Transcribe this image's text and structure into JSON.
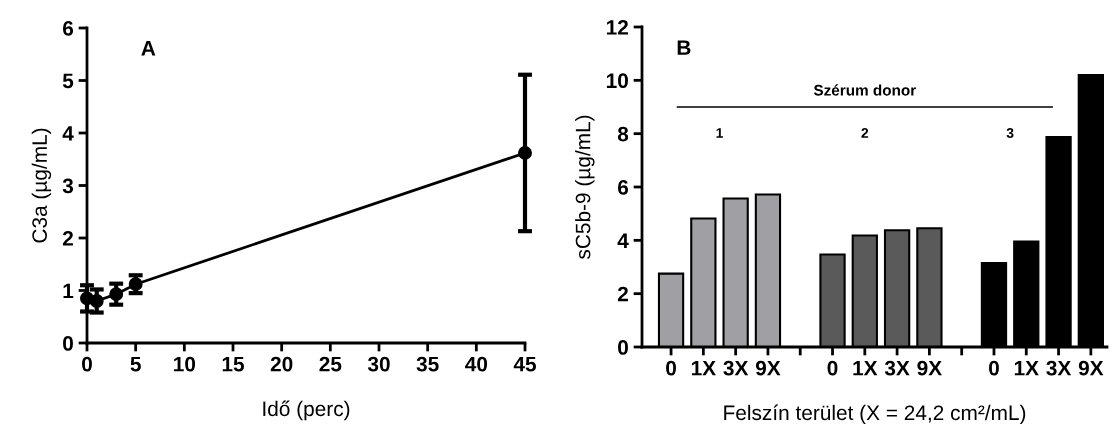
{
  "chart_data": [
    {
      "type": "line",
      "xlabel": "Idő (perc)",
      "ylabel": "C3a (µg/mL)",
      "annotations": [
        "A"
      ],
      "x": [
        0,
        1,
        3,
        5,
        45
      ],
      "series": [
        {
          "color": "#000000",
          "values": [
            0.85,
            0.8,
            0.93,
            1.12,
            3.62
          ],
          "errors": [
            0.25,
            0.22,
            0.2,
            0.17,
            1.49
          ]
        }
      ],
      "xlim": [
        0,
        45
      ],
      "xticks": [
        0,
        5,
        10,
        15,
        20,
        25,
        30,
        35,
        40,
        45
      ],
      "ylim": [
        0,
        6
      ],
      "yticks": [
        0,
        1,
        2,
        3,
        4,
        5,
        6
      ],
      "marker": "circle",
      "line_style": "solid",
      "grid": false,
      "legend": false
    },
    {
      "type": "bar",
      "xlabel": "Felszín terület (X = 24,2 cm²/mL)",
      "ylabel": "sC5b-9 (µg/mL)",
      "annotations": [
        "B",
        "1",
        "2",
        "3"
      ],
      "ref_lines": [
        {
          "axis": "y",
          "value": 9,
          "label": "Szérum donor",
          "color": "#000000",
          "line_style": "solid"
        }
      ],
      "categories": [
        "0",
        "1X",
        "3X",
        "9X",
        null,
        "0",
        "1X",
        "3X",
        "9X",
        null,
        "0",
        "1X",
        "3X",
        "9X"
      ],
      "values": [
        2.75,
        4.82,
        5.57,
        5.72,
        null,
        3.47,
        4.18,
        4.38,
        4.45,
        null,
        3.15,
        3.95,
        7.87,
        10.2
      ],
      "colors": [
        "#a0a0a4",
        "#a0a0a4",
        "#a0a0a4",
        "#a0a0a4",
        null,
        "#5a5a5a",
        "#5a5a5a",
        "#5a5a5a",
        "#5a5a5a",
        null,
        "#000000",
        "#000000",
        "#000000",
        "#000000"
      ],
      "ylim": [
        0,
        12
      ],
      "yticks": [
        0,
        2,
        4,
        6,
        8,
        10,
        12
      ],
      "grid": false,
      "legend": false
    }
  ]
}
